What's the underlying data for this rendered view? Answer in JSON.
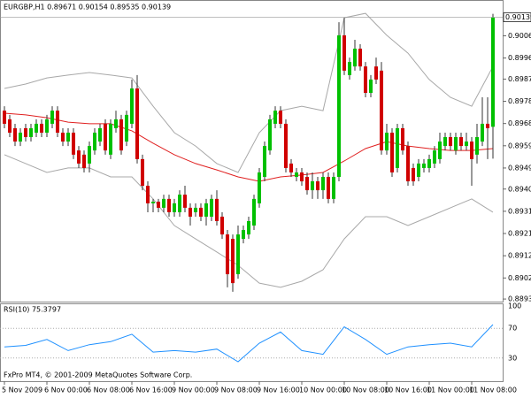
{
  "chart_data": [
    {
      "type": "candlestick",
      "title": "EURGBP,H1  0.89671 0.90154 0.89535 0.90139",
      "up_color": "#00c000",
      "down_color": "#d00000",
      "ylim": [
        0.88924,
        0.90213
      ],
      "yticks": [
        0.90145,
        {
          "value": 0.9006,
          "label": "0.90060"
        },
        0.89965,
        0.89875,
        {
          "value": 0.8978,
          "label": "0.89780"
        },
        0.89685,
        {
          "value": 0.8959,
          "label": "0.89590"
        },
        0.89495,
        0.89405,
        {
          "value": 0.8931,
          "label": "0.89310"
        },
        0.89215,
        {
          "value": 0.8912,
          "label": "0.89120"
        },
        0.89025,
        0.88935
      ],
      "xticks": [
        {
          "value": 0,
          "label": "5 Nov 2009"
        },
        {
          "value": 8,
          "label": "6 Nov 00:00"
        },
        {
          "value": 16,
          "label": "6 Nov 08:00"
        },
        {
          "value": 24,
          "label": "6 Nov 16:00"
        },
        {
          "value": 32,
          "label": "9 Nov 00:00"
        },
        {
          "value": 40,
          "label": "9 Nov 08:00"
        },
        {
          "value": 48,
          "label": "9 Nov 16:00"
        },
        {
          "value": 56,
          "label": "10 Nov 00:00"
        },
        {
          "value": 64,
          "label": "10 Nov 08:00"
        },
        {
          "value": 72,
          "label": "10 Nov 16:00"
        },
        {
          "value": 80,
          "label": "11 Nov 00:00"
        },
        {
          "value": 88,
          "label": "11 Nov 08:00"
        }
      ],
      "ohlc": [
        [
          0.8974,
          0.89759,
          0.89665,
          0.89684
        ],
        [
          0.89703,
          0.89722,
          0.89627,
          0.89646
        ],
        [
          0.89665,
          0.89684,
          0.89589,
          0.89608
        ],
        [
          0.89608,
          0.89665,
          0.89589,
          0.89646
        ],
        [
          0.89665,
          0.89684,
          0.89608,
          0.89627
        ],
        [
          0.89627,
          0.89684,
          0.89608,
          0.89665
        ],
        [
          0.89646,
          0.89703,
          0.89627,
          0.89684
        ],
        [
          0.89684,
          0.89703,
          0.89627,
          0.89646
        ],
        [
          0.89646,
          0.89722,
          0.89627,
          0.89703
        ],
        [
          0.89684,
          0.89759,
          0.89665,
          0.8974
        ],
        [
          0.8974,
          0.89759,
          0.89627,
          0.89646
        ],
        [
          0.89646,
          0.89665,
          0.89589,
          0.89608
        ],
        [
          0.89608,
          0.89665,
          0.89589,
          0.89646
        ],
        [
          0.89646,
          0.89665,
          0.89533,
          0.89552
        ],
        [
          0.8957,
          0.89589,
          0.89495,
          0.89514
        ],
        [
          0.89552,
          0.8957,
          0.89476,
          0.89495
        ],
        [
          0.89514,
          0.89608,
          0.89476,
          0.89589
        ],
        [
          0.8957,
          0.89665,
          0.89552,
          0.89646
        ],
        [
          0.89608,
          0.89684,
          0.89589,
          0.89665
        ],
        [
          0.89684,
          0.89703,
          0.89552,
          0.8957
        ],
        [
          0.89552,
          0.89703,
          0.89533,
          0.89684
        ],
        [
          0.89665,
          0.8974,
          0.89646,
          0.89703
        ],
        [
          0.89703,
          0.89722,
          0.89552,
          0.8957
        ],
        [
          0.89608,
          0.8974,
          0.89589,
          0.89722
        ],
        [
          0.89684,
          0.89873,
          0.89665,
          0.89835
        ],
        [
          0.89835,
          0.89892,
          0.89514,
          0.89533
        ],
        [
          0.89533,
          0.89552,
          0.894,
          0.89419
        ],
        [
          0.89419,
          0.89438,
          0.89306,
          0.89344
        ],
        [
          0.89344,
          0.89363,
          0.89306,
          0.89351
        ],
        [
          0.89351,
          0.89363,
          0.89306,
          0.89325
        ],
        [
          0.89325,
          0.89381,
          0.89306,
          0.89363
        ],
        [
          0.89363,
          0.89381,
          0.89287,
          0.89306
        ],
        [
          0.89306,
          0.89363,
          0.89287,
          0.89344
        ],
        [
          0.89306,
          0.894,
          0.89287,
          0.89381
        ],
        [
          0.89381,
          0.89419,
          0.89306,
          0.89325
        ],
        [
          0.89325,
          0.89344,
          0.89249,
          0.89287
        ],
        [
          0.89306,
          0.89344,
          0.89287,
          0.89325
        ],
        [
          0.89325,
          0.89344,
          0.89268,
          0.89287
        ],
        [
          0.89287,
          0.89363,
          0.89249,
          0.89344
        ],
        [
          0.89287,
          0.89381,
          0.89268,
          0.89363
        ],
        [
          0.89363,
          0.894,
          0.89249,
          0.89268
        ],
        [
          0.89287,
          0.89306,
          0.89192,
          0.89211
        ],
        [
          0.89211,
          0.8923,
          0.88985,
          0.89041
        ],
        [
          0.89192,
          0.89211,
          0.88966,
          0.89003
        ],
        [
          0.89041,
          0.89249,
          0.89022,
          0.89211
        ],
        [
          0.89192,
          0.89249,
          0.89173,
          0.8923
        ],
        [
          0.89211,
          0.89287,
          0.89192,
          0.89268
        ],
        [
          0.89249,
          0.89381,
          0.8923,
          0.89363
        ],
        [
          0.89344,
          0.89495,
          0.89325,
          0.89476
        ],
        [
          0.89457,
          0.89608,
          0.89438,
          0.89589
        ],
        [
          0.8957,
          0.89722,
          0.89552,
          0.89703
        ],
        [
          0.89684,
          0.89759,
          0.89665,
          0.8974
        ],
        [
          0.8974,
          0.89759,
          0.89665,
          0.89684
        ],
        [
          0.89684,
          0.89703,
          0.89476,
          0.89495
        ],
        [
          0.89514,
          0.89533,
          0.89457,
          0.89476
        ],
        [
          0.89457,
          0.89495,
          0.89438,
          0.89476
        ],
        [
          0.89476,
          0.89495,
          0.89419,
          0.89438
        ],
        [
          0.89457,
          0.89476,
          0.89381,
          0.894
        ],
        [
          0.894,
          0.89476,
          0.89363,
          0.89438
        ],
        [
          0.89438,
          0.89457,
          0.89363,
          0.894
        ],
        [
          0.894,
          0.89476,
          0.89363,
          0.89457
        ],
        [
          0.89457,
          0.89476,
          0.89344,
          0.89363
        ],
        [
          0.89363,
          0.89476,
          0.89344,
          0.89457
        ],
        [
          0.89457,
          0.90118,
          0.89438,
          0.90062
        ],
        [
          0.90062,
          0.90137,
          0.89892,
          0.89911
        ],
        [
          0.89892,
          0.89967,
          0.89873,
          0.89948
        ],
        [
          0.89929,
          0.90043,
          0.89911,
          0.90005
        ],
        [
          0.90005,
          0.90024,
          0.89911,
          0.89929
        ],
        [
          0.89929,
          0.89948,
          0.89797,
          0.89816
        ],
        [
          0.89816,
          0.89892,
          0.89797,
          0.89873
        ],
        [
          0.89929,
          0.89967,
          0.89854,
          0.89873
        ],
        [
          0.89911,
          0.89948,
          0.89552,
          0.8957
        ],
        [
          0.8957,
          0.89684,
          0.89552,
          0.89646
        ],
        [
          0.89646,
          0.89665,
          0.89457,
          0.89476
        ],
        [
          0.89495,
          0.89684,
          0.89476,
          0.89665
        ],
        [
          0.89665,
          0.89684,
          0.89552,
          0.8957
        ],
        [
          0.89589,
          0.89608,
          0.89419,
          0.89438
        ],
        [
          0.89495,
          0.89514,
          0.89419,
          0.89438
        ],
        [
          0.89457,
          0.89533,
          0.89438,
          0.89514
        ],
        [
          0.89495,
          0.89533,
          0.89476,
          0.89514
        ],
        [
          0.89495,
          0.89552,
          0.89476,
          0.89533
        ],
        [
          0.89514,
          0.89589,
          0.89495,
          0.8957
        ],
        [
          0.89533,
          0.89646,
          0.89514,
          0.89608
        ],
        [
          0.89589,
          0.89646,
          0.8957,
          0.89627
        ],
        [
          0.89627,
          0.89646,
          0.8957,
          0.89589
        ],
        [
          0.8957,
          0.89646,
          0.89552,
          0.89627
        ],
        [
          0.89627,
          0.89646,
          0.8957,
          0.89589
        ],
        [
          0.89589,
          0.89646,
          0.8957,
          0.89608
        ],
        [
          0.89608,
          0.89627,
          0.89419,
          0.89533
        ],
        [
          0.89552,
          0.89684,
          0.89514,
          0.89627
        ],
        [
          0.89608,
          0.89797,
          0.89589,
          0.89684
        ],
        [
          0.89684,
          0.89797,
          0.89533,
          0.89665
        ],
        [
          0.89671,
          0.90154,
          0.89535,
          0.90139
        ]
      ],
      "overlay_x": [
        0,
        4,
        8,
        12,
        16,
        20,
        24,
        28,
        32,
        36,
        40,
        44,
        48,
        52,
        56,
        60,
        64,
        68,
        72,
        76,
        80,
        84,
        88,
        92
      ],
      "band_color": "#a8a8a8",
      "band_upper": [
        0.89835,
        0.89854,
        0.8988,
        0.89892,
        0.89903,
        0.89892,
        0.8988,
        0.89759,
        0.89646,
        0.89589,
        0.89514,
        0.89476,
        0.89646,
        0.8974,
        0.89759,
        0.8974,
        0.90137,
        0.90156,
        0.90062,
        0.89986,
        0.89873,
        0.89797,
        0.89759,
        0.89929
      ],
      "band_lower": [
        0.89552,
        0.89514,
        0.89476,
        0.89495,
        0.89495,
        0.89457,
        0.89457,
        0.89363,
        0.89249,
        0.89192,
        0.89136,
        0.89079,
        0.89003,
        0.88985,
        0.89011,
        0.8906,
        0.89192,
        0.89287,
        0.89287,
        0.89249,
        0.89287,
        0.89325,
        0.89363,
        0.89306
      ],
      "ma_color": "#e02020",
      "ma": [
        0.89729,
        0.89722,
        0.8971,
        0.89691,
        0.89684,
        0.89684,
        0.89654,
        0.89601,
        0.89552,
        0.89514,
        0.89487,
        0.89457,
        0.89438,
        0.89457,
        0.89465,
        0.89476,
        0.89525,
        0.89578,
        0.89608,
        0.89589,
        0.89578,
        0.8957,
        0.8957,
        0.89578
      ]
    },
    {
      "type": "line",
      "title": "RSI(10) 75.3797",
      "x": [
        0,
        4,
        8,
        12,
        16,
        20,
        24,
        28,
        32,
        36,
        40,
        44,
        48,
        52,
        56,
        60,
        64,
        68,
        72,
        76,
        80,
        84,
        88,
        92
      ],
      "values": [
        45,
        47,
        55,
        40,
        48,
        52,
        62,
        38,
        40,
        38,
        42,
        25,
        50,
        65,
        40,
        35,
        72,
        55,
        35,
        45,
        48,
        50,
        45,
        75
      ],
      "color": "#1e90ff",
      "ylim": [
        0,
        100
      ],
      "yticks": [
        100,
        70,
        30
      ],
      "levels": [
        70,
        30
      ]
    }
  ],
  "footer": "FxPro MT4, © 2001-2009 MetaQuotes Software Corp."
}
